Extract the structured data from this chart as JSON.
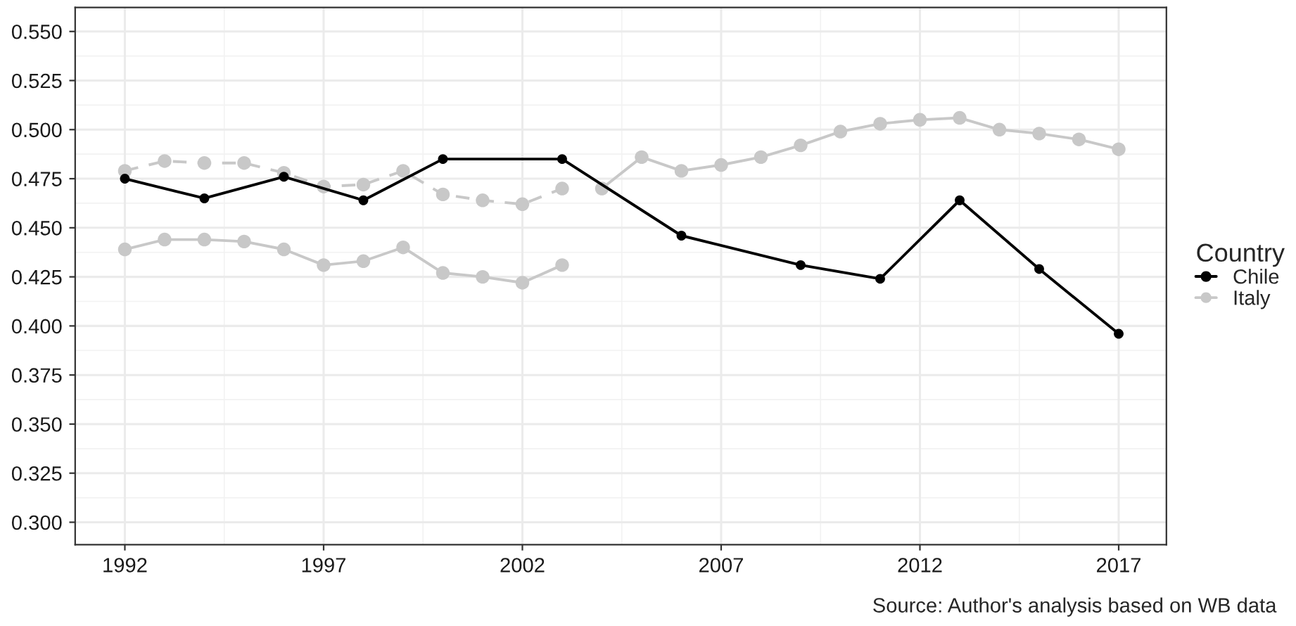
{
  "chart_data": {
    "type": "line",
    "legend_title": "Country",
    "legend": "right",
    "grid": true,
    "marker": "circle",
    "annotations": [
      "Source: Author's analysis based on WB data"
    ],
    "xlim": [
      1990.75,
      2018.2
    ],
    "xticks": [
      1992,
      1997,
      2002,
      2007,
      2012,
      2017
    ],
    "ylim": [
      0.2886,
      0.5622
    ],
    "yticks": [
      {
        "value": 0.3,
        "label": "0.300"
      },
      {
        "value": 0.325,
        "label": "0.325"
      },
      {
        "value": 0.35,
        "label": "0.350"
      },
      {
        "value": 0.375,
        "label": "0.375"
      },
      {
        "value": 0.4,
        "label": "0.400"
      },
      {
        "value": 0.425,
        "label": "0.425"
      },
      {
        "value": 0.45,
        "label": "0.450"
      },
      {
        "value": 0.475,
        "label": "0.475"
      },
      {
        "value": 0.5,
        "label": "0.500"
      },
      {
        "value": 0.525,
        "label": "0.525"
      },
      {
        "value": 0.55,
        "label": "0.550"
      }
    ],
    "series": [
      {
        "name": "Chile",
        "color": "#000000",
        "line_style": "solid",
        "x": [
          1992,
          1994,
          1996,
          1998,
          2000,
          2003,
          2006,
          2009,
          2011,
          2013,
          2015,
          2017
        ],
        "values": [
          0.475,
          0.465,
          0.476,
          0.464,
          0.485,
          0.485,
          0.446,
          0.431,
          0.424,
          0.464,
          0.429,
          0.396
        ]
      },
      {
        "name": "Italy",
        "color": "#c8c8c8",
        "line_style": "solid",
        "x": [
          2004,
          2005,
          2006,
          2007,
          2008,
          2009,
          2010,
          2011,
          2012,
          2013,
          2014,
          2015,
          2016,
          2017
        ],
        "values": [
          0.47,
          0.486,
          0.479,
          0.482,
          0.486,
          0.492,
          0.499,
          0.503,
          0.505,
          0.506,
          0.5,
          0.498,
          0.495,
          0.49
        ]
      },
      {
        "color": "#c8c8c8",
        "line_style": "dashed",
        "x": [
          1992,
          1993,
          1994,
          1995,
          1996,
          1997,
          1998,
          1999,
          2000,
          2001,
          2002,
          2003
        ],
        "values": [
          0.479,
          0.484,
          0.483,
          0.483,
          0.478,
          0.471,
          0.472,
          0.479,
          0.467,
          0.464,
          0.462,
          0.47
        ]
      },
      {
        "color": "#c8c8c8",
        "line_style": "solid",
        "x": [
          1992,
          1993,
          1994,
          1995,
          1996,
          1997,
          1998,
          1999,
          2000,
          2001,
          2002,
          2003
        ],
        "values": [
          0.439,
          0.444,
          0.444,
          0.443,
          0.439,
          0.431,
          0.433,
          0.44,
          0.427,
          0.425,
          0.422,
          0.431
        ]
      }
    ]
  }
}
